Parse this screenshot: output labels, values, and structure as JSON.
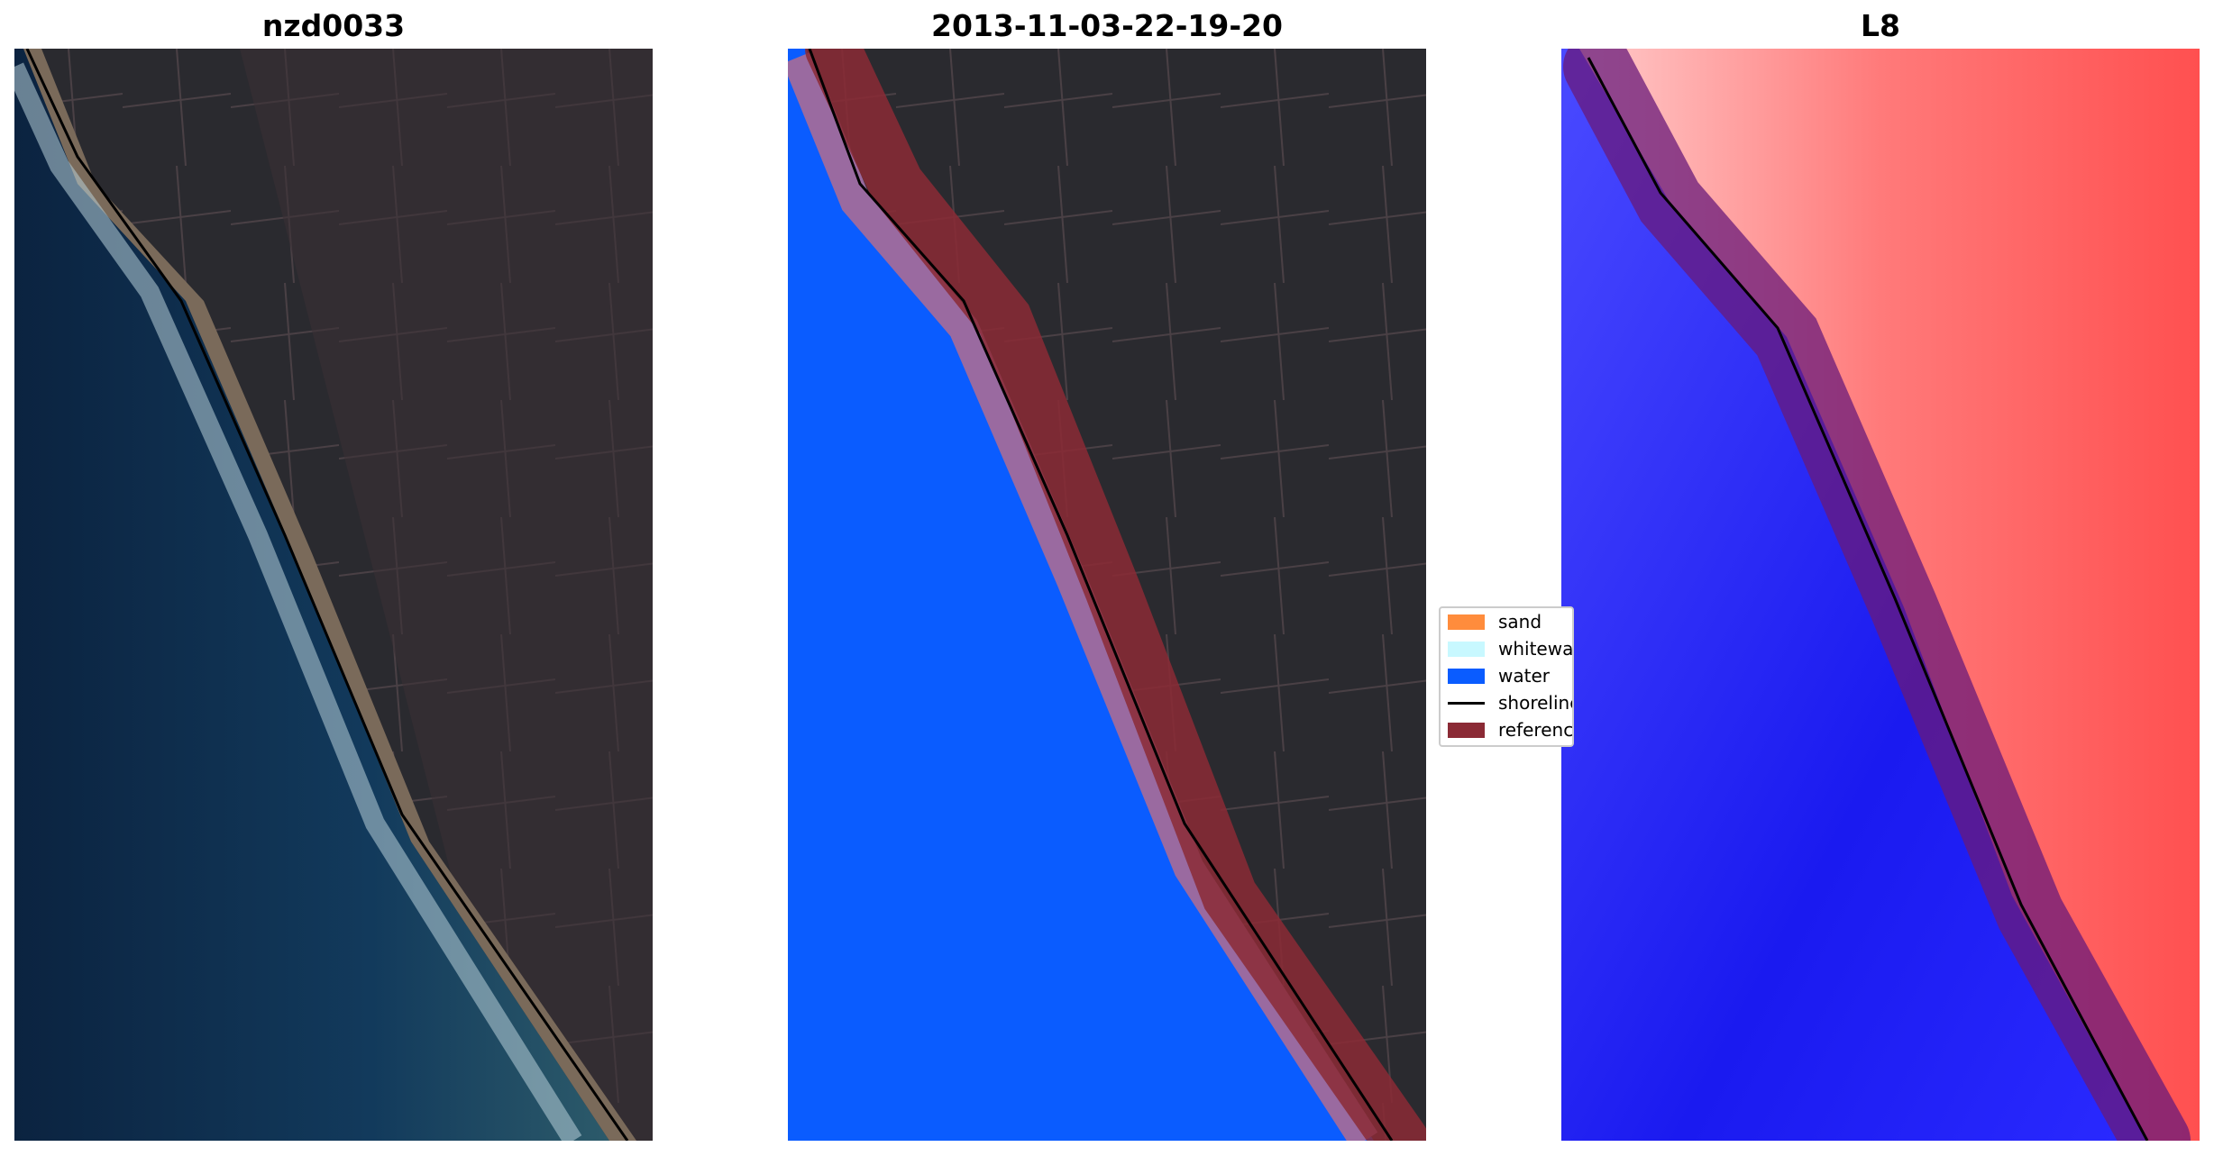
{
  "panels": [
    {
      "title": "nzd0033"
    },
    {
      "title": "2013-11-03-22-19-20"
    },
    {
      "title": "L8"
    }
  ],
  "legend": {
    "items": [
      {
        "label": "sand",
        "color": "#ff8c3c"
      },
      {
        "label": "whitewater",
        "color": "#c8f8ff"
      },
      {
        "label": "water",
        "color": "#0a5cff"
      },
      {
        "label": "shoreline",
        "color": "#000000"
      },
      {
        "label": "reference shoreline buffer",
        "color": "#8b2a35"
      }
    ]
  },
  "colors": {
    "land_dark": "#2a2a2e",
    "ocean_dark": "#0d2a47",
    "water_class": "#0a5cff",
    "buffer": "#8b2a35",
    "index_positive": "#ff5050",
    "index_negative": "#2020ff"
  }
}
